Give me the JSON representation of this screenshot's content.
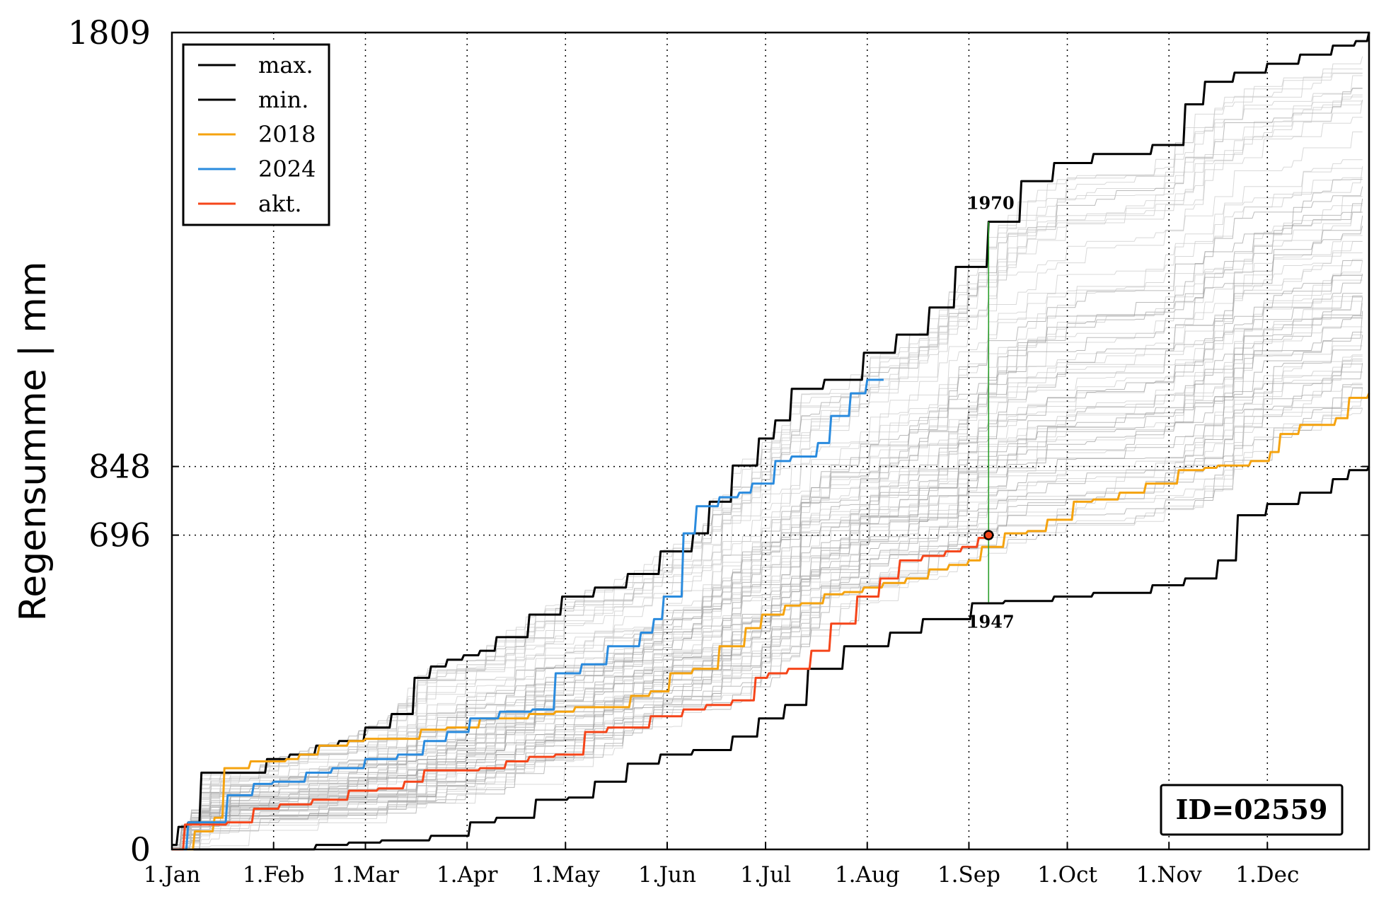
{
  "chart_data": {
    "type": "line",
    "ylabel": "Regensumme | mm",
    "xlabel": "",
    "title": "",
    "ylim": [
      0,
      1809
    ],
    "xlim_days": [
      1,
      366
    ],
    "x_ticks": [
      {
        "label": "1.Jan",
        "day": 1
      },
      {
        "label": "1.Feb",
        "day": 32
      },
      {
        "label": "1.Mar",
        "day": 60
      },
      {
        "label": "1.Apr",
        "day": 91
      },
      {
        "label": "1.May",
        "day": 121
      },
      {
        "label": "1.Jun",
        "day": 152
      },
      {
        "label": "1.Jul",
        "day": 182
      },
      {
        "label": "1.Aug",
        "day": 213
      },
      {
        "label": "1.Sep",
        "day": 244
      },
      {
        "label": "1.Oct",
        "day": 274
      },
      {
        "label": "1.Nov",
        "day": 305
      },
      {
        "label": "1.Dec",
        "day": 335
      }
    ],
    "y_ticks": [
      0,
      696,
      848,
      1809
    ],
    "hlines": [
      696,
      848
    ],
    "grid": "dotted vertical at month starts",
    "legend_position": "top-left",
    "legend": [
      "max.",
      "min.",
      "2018",
      "2024",
      "akt."
    ],
    "annotations": {
      "max_year": "1970",
      "min_year": "1947",
      "current_day": 250,
      "current_value": 696,
      "id_box": "ID=02559"
    },
    "series": [
      {
        "name": "max.",
        "color": "#000000",
        "points": [
          [
            1,
            10
          ],
          [
            3,
            50
          ],
          [
            6,
            60
          ],
          [
            10,
            170
          ],
          [
            25,
            170
          ],
          [
            30,
            200
          ],
          [
            37,
            210
          ],
          [
            45,
            230
          ],
          [
            52,
            240
          ],
          [
            60,
            270
          ],
          [
            68,
            300
          ],
          [
            75,
            380
          ],
          [
            80,
            405
          ],
          [
            85,
            420
          ],
          [
            90,
            430
          ],
          [
            95,
            440
          ],
          [
            100,
            470
          ],
          [
            110,
            520
          ],
          [
            120,
            560
          ],
          [
            130,
            580
          ],
          [
            140,
            610
          ],
          [
            150,
            660
          ],
          [
            160,
            700
          ],
          [
            165,
            770
          ],
          [
            172,
            850
          ],
          [
            180,
            910
          ],
          [
            185,
            950
          ],
          [
            190,
            1020
          ],
          [
            200,
            1040
          ],
          [
            206,
            1040
          ],
          [
            212,
            1100
          ],
          [
            222,
            1140
          ],
          [
            232,
            1200
          ],
          [
            240,
            1290
          ],
          [
            250,
            1390
          ],
          [
            260,
            1480
          ],
          [
            270,
            1520
          ],
          [
            282,
            1540
          ],
          [
            290,
            1540
          ],
          [
            300,
            1560
          ],
          [
            310,
            1650
          ],
          [
            316,
            1700
          ],
          [
            325,
            1720
          ],
          [
            335,
            1740
          ],
          [
            345,
            1760
          ],
          [
            355,
            1780
          ],
          [
            362,
            1790
          ],
          [
            366,
            1809
          ]
        ]
      },
      {
        "name": "min.",
        "color": "#000000",
        "points": [
          [
            1,
            0
          ],
          [
            25,
            0
          ],
          [
            37,
            0
          ],
          [
            45,
            10
          ],
          [
            55,
            15
          ],
          [
            65,
            20
          ],
          [
            80,
            30
          ],
          [
            92,
            60
          ],
          [
            100,
            70
          ],
          [
            112,
            110
          ],
          [
            122,
            115
          ],
          [
            130,
            150
          ],
          [
            140,
            190
          ],
          [
            150,
            210
          ],
          [
            160,
            220
          ],
          [
            172,
            250
          ],
          [
            180,
            290
          ],
          [
            188,
            320
          ],
          [
            195,
            400
          ],
          [
            206,
            450
          ],
          [
            220,
            480
          ],
          [
            230,
            510
          ],
          [
            245,
            545
          ],
          [
            255,
            550
          ],
          [
            270,
            560
          ],
          [
            282,
            568
          ],
          [
            300,
            585
          ],
          [
            310,
            600
          ],
          [
            320,
            640
          ],
          [
            326,
            740
          ],
          [
            335,
            765
          ],
          [
            345,
            790
          ],
          [
            355,
            820
          ],
          [
            360,
            840
          ],
          [
            366,
            848
          ]
        ]
      },
      {
        "name": "2018",
        "color": "#f5a30f",
        "points": [
          [
            1,
            0
          ],
          [
            8,
            40
          ],
          [
            14,
            70
          ],
          [
            17,
            180
          ],
          [
            25,
            195
          ],
          [
            30,
            195
          ],
          [
            36,
            200
          ],
          [
            40,
            210
          ],
          [
            46,
            230
          ],
          [
            55,
            240
          ],
          [
            60,
            245
          ],
          [
            68,
            245
          ],
          [
            77,
            265
          ],
          [
            85,
            270
          ],
          [
            95,
            290
          ],
          [
            100,
            290
          ],
          [
            110,
            300
          ],
          [
            118,
            305
          ],
          [
            124,
            315
          ],
          [
            136,
            315
          ],
          [
            141,
            340
          ],
          [
            147,
            350
          ],
          [
            153,
            390
          ],
          [
            160,
            400
          ],
          [
            168,
            450
          ],
          [
            176,
            490
          ],
          [
            181,
            520
          ],
          [
            188,
            540
          ],
          [
            193,
            545
          ],
          [
            200,
            565
          ],
          [
            206,
            570
          ],
          [
            212,
            580
          ],
          [
            218,
            590
          ],
          [
            225,
            600
          ],
          [
            232,
            620
          ],
          [
            238,
            630
          ],
          [
            244,
            640
          ],
          [
            248,
            670
          ],
          [
            255,
            700
          ],
          [
            262,
            705
          ],
          [
            268,
            730
          ],
          [
            276,
            770
          ],
          [
            282,
            775
          ],
          [
            290,
            790
          ],
          [
            298,
            810
          ],
          [
            308,
            840
          ],
          [
            316,
            845
          ],
          [
            320,
            850
          ],
          [
            330,
            860
          ],
          [
            336,
            880
          ],
          [
            339,
            920
          ],
          [
            345,
            940
          ],
          [
            352,
            940
          ],
          [
            356,
            955
          ],
          [
            360,
            1000
          ],
          [
            366,
            1010
          ]
        ]
      },
      {
        "name": "2024",
        "color": "#2a8bde",
        "points": [
          [
            1,
            0
          ],
          [
            6,
            60
          ],
          [
            14,
            60
          ],
          [
            18,
            120
          ],
          [
            26,
            145
          ],
          [
            32,
            150
          ],
          [
            42,
            170
          ],
          [
            50,
            180
          ],
          [
            60,
            200
          ],
          [
            70,
            210
          ],
          [
            78,
            240
          ],
          [
            85,
            260
          ],
          [
            92,
            290
          ],
          [
            101,
            305
          ],
          [
            111,
            310
          ],
          [
            118,
            390
          ],
          [
            126,
            410
          ],
          [
            134,
            450
          ],
          [
            144,
            480
          ],
          [
            148,
            510
          ],
          [
            151,
            560
          ],
          [
            157,
            700
          ],
          [
            161,
            760
          ],
          [
            168,
            780
          ],
          [
            174,
            790
          ],
          [
            178,
            810
          ],
          [
            185,
            860
          ],
          [
            190,
            870
          ],
          [
            198,
            900
          ],
          [
            202,
            960
          ],
          [
            208,
            1010
          ],
          [
            213,
            1040
          ],
          [
            218,
            1040
          ]
        ]
      },
      {
        "name": "akt.",
        "color": "#f5451a",
        "points": [
          [
            1,
            0
          ],
          [
            5,
            55
          ],
          [
            18,
            60
          ],
          [
            26,
            90
          ],
          [
            34,
            100
          ],
          [
            44,
            110
          ],
          [
            55,
            130
          ],
          [
            64,
            135
          ],
          [
            72,
            150
          ],
          [
            78,
            175
          ],
          [
            87,
            175
          ],
          [
            95,
            180
          ],
          [
            103,
            195
          ],
          [
            110,
            205
          ],
          [
            118,
            210
          ],
          [
            127,
            260
          ],
          [
            134,
            270
          ],
          [
            147,
            295
          ],
          [
            157,
            310
          ],
          [
            164,
            320
          ],
          [
            172,
            330
          ],
          [
            179,
            380
          ],
          [
            183,
            390
          ],
          [
            189,
            400
          ],
          [
            196,
            440
          ],
          [
            202,
            500
          ],
          [
            210,
            560
          ],
          [
            217,
            600
          ],
          [
            223,
            640
          ],
          [
            230,
            650
          ],
          [
            237,
            660
          ],
          [
            242,
            670
          ],
          [
            247,
            690
          ],
          [
            250,
            696
          ]
        ]
      }
    ],
    "background_series_note_color": "#c8c8c8"
  },
  "colors": {
    "max_line": "#000000",
    "min_line": "#000000",
    "line_2018": "#f5a30f",
    "line_2024": "#2a8bde",
    "line_current": "#f5451a",
    "marker_line": "#2ca02c",
    "background_lines": "#bdbdbd"
  }
}
